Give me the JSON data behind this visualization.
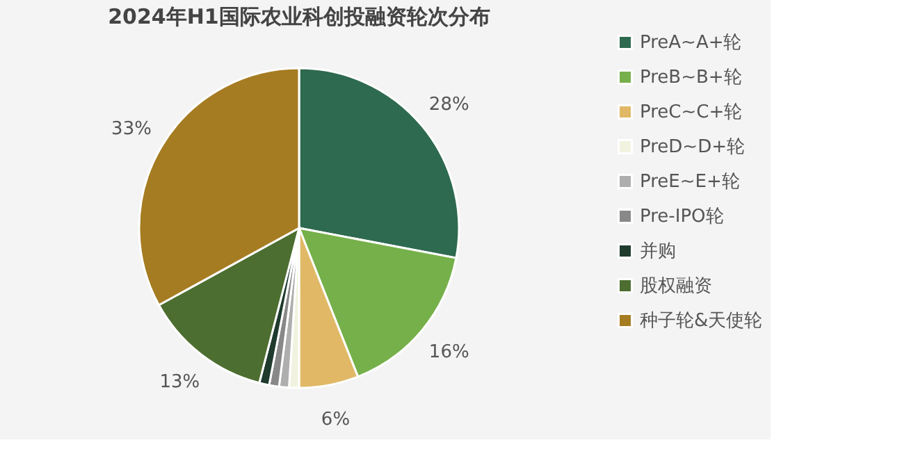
{
  "chart_data": {
    "type": "pie",
    "title": "2024年H1国际农业科创投融资轮次分布",
    "categories": [
      "PreA~A+轮",
      "PreB~B+轮",
      "PreC~C+轮",
      "PreD~D+轮",
      "PreE~E+轮",
      "Pre-IPO轮",
      "并购",
      "股权融资",
      "种子轮&天使轮"
    ],
    "values": [
      28,
      16,
      6,
      1,
      1,
      1,
      1,
      13,
      33
    ],
    "colors": [
      "#2e6a4f",
      "#76b04a",
      "#e0b866",
      "#f1f3e0",
      "#aeaeae",
      "#888888",
      "#1e3b2e",
      "#4c6e30",
      "#a67c22"
    ],
    "value_labels": [
      "28%",
      "16%",
      "6%",
      null,
      null,
      null,
      null,
      "13%",
      "33%"
    ],
    "legend": "right"
  }
}
